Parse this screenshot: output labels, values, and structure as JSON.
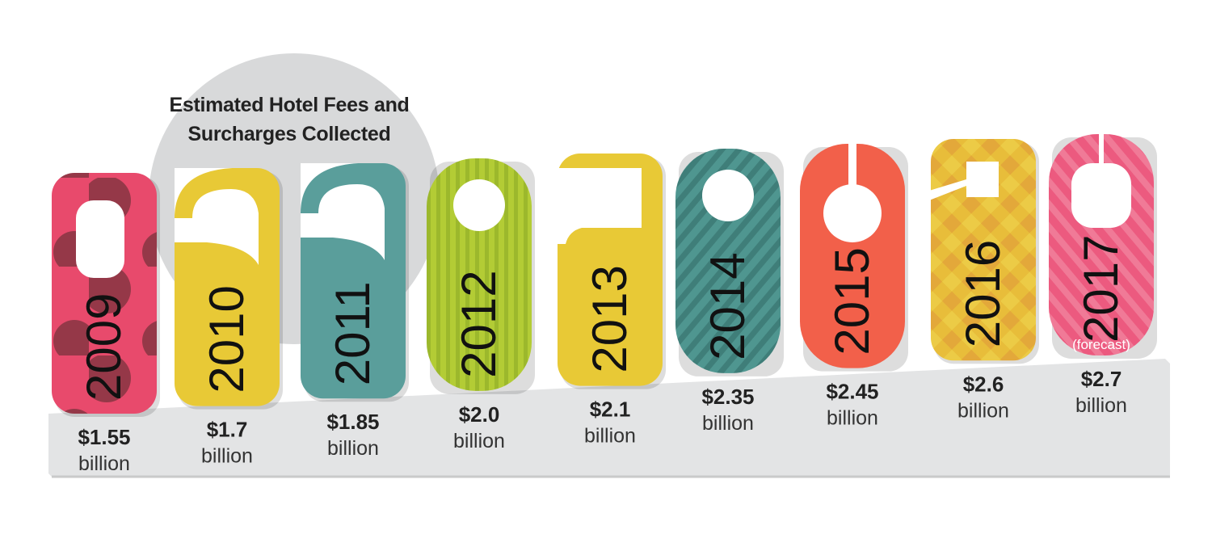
{
  "chart_data": {
    "type": "bar",
    "title_lines": [
      "Estimated Hotel Fees and",
      "Surcharges Collected"
    ],
    "categories": [
      "2009",
      "2010",
      "2011",
      "2012",
      "2013",
      "2014",
      "2015",
      "2016",
      "2017"
    ],
    "values": [
      1.55,
      1.7,
      1.85,
      2.0,
      2.1,
      2.35,
      2.45,
      2.6,
      2.7
    ],
    "value_labels": [
      "$1.55",
      "$1.7",
      "$1.85",
      "$2.0",
      "$2.1",
      "$2.35",
      "$2.45",
      "$2.6",
      "$2.7"
    ],
    "unit_label": "billion",
    "annotations": [
      {
        "category": "2017",
        "text": "(forecast)"
      }
    ],
    "colors": [
      "#e84a6c",
      "#e8c936",
      "#5a9e9b",
      "#b3cc35",
      "#e8c936",
      "#4f9690",
      "#f2604a",
      "#e8bd3a",
      "#ec5a7f"
    ],
    "xlabel": "",
    "ylabel": ""
  }
}
